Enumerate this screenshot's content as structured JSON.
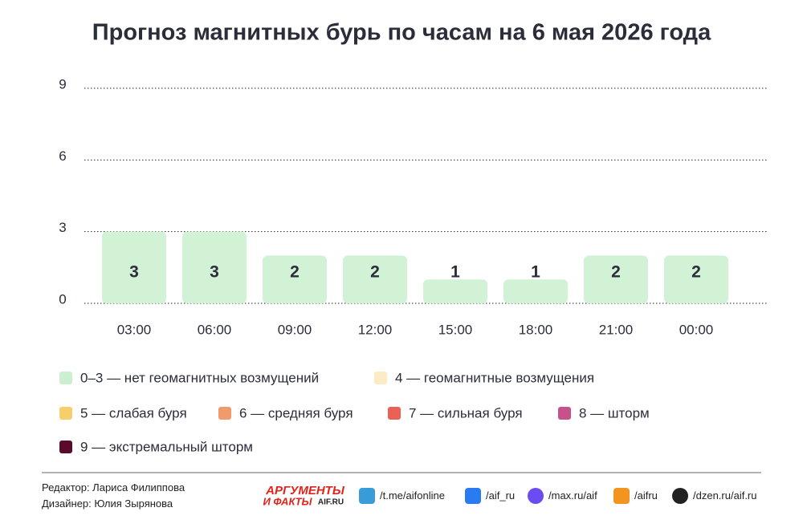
{
  "chart_data": {
    "type": "bar",
    "title": "Прогноз магнитных бурь по часам на 6 мая 2026 года",
    "categories": [
      "03:00",
      "06:00",
      "09:00",
      "12:00",
      "15:00",
      "18:00",
      "21:00",
      "00:00"
    ],
    "values": [
      3,
      3,
      2,
      2,
      1,
      1,
      2,
      2
    ],
    "color": "#d2f2d6",
    "ylim": [
      0,
      9
    ],
    "yticks": [
      0,
      3,
      6,
      9
    ],
    "grid": true,
    "legend": [
      {
        "label": "0–3 — нет геомагнитных возмущений",
        "color": "#cdefd1"
      },
      {
        "label": "4 — геомагнитные возмущения",
        "color": "#fcecc6"
      },
      {
        "label": "5 — слабая буря",
        "color": "#f6cf6c"
      },
      {
        "label": "6 — средняя буря",
        "color": "#f19b6c"
      },
      {
        "label": "7 — сильная буря",
        "color": "#ea6255"
      },
      {
        "label": "8 — шторм",
        "color": "#c6518b"
      },
      {
        "label": "9 — экстремальный шторм",
        "color": "#5a0b2b"
      }
    ]
  },
  "footer": {
    "editor": "Редактор: Лариса Филиппова",
    "designer": "Дизайнер: Юлия Зырянова",
    "logo_top": "АРГУМЕНТЫ",
    "logo_bottom": "И ФАКТЫ",
    "logo_site": "AIF.RU",
    "links": [
      "/t.me/aifonline",
      "/aif_ru",
      "/max.ru/aif",
      "/aifru",
      "/dzen.ru/aif.ru"
    ]
  }
}
